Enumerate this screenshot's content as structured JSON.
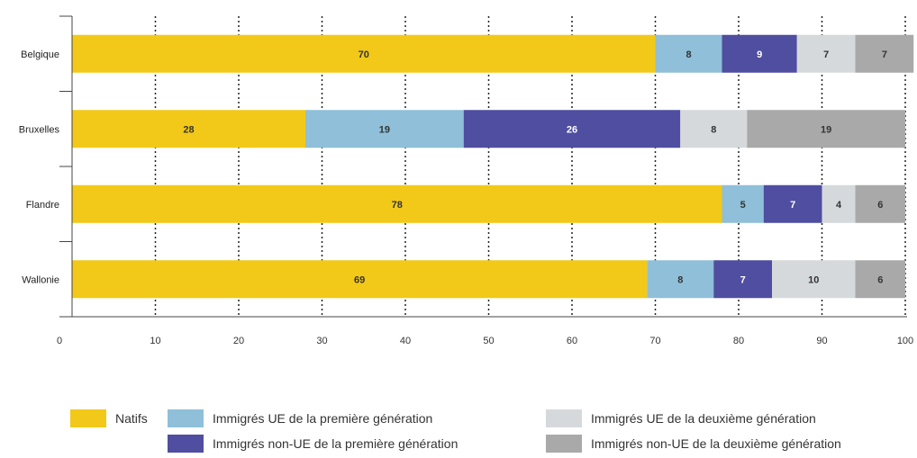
{
  "chart_data": {
    "type": "bar",
    "orientation": "horizontal",
    "stacked": true,
    "categories": [
      "Belgique",
      "Bruxelles",
      "Flandre",
      "Wallonie"
    ],
    "series": [
      {
        "name": "Natifs",
        "values": [
          70,
          28,
          78,
          69
        ],
        "color": "#f2c918",
        "label_color": "#333333"
      },
      {
        "name": "Immigrés UE de la première génération",
        "values": [
          8,
          19,
          5,
          8
        ],
        "color": "#8fbfd9",
        "label_color": "#333333"
      },
      {
        "name": "Immigrés non-UE de la première génération",
        "values": [
          9,
          26,
          7,
          7
        ],
        "color": "#4f4ea0",
        "label_color": "#ffffff"
      },
      {
        "name": "Immigrés UE de la deuxième génération",
        "values": [
          7,
          8,
          4,
          10
        ],
        "color": "#d5d9dc",
        "label_color": "#333333"
      },
      {
        "name": "Immigrés non-UE de la deuxième génération",
        "values": [
          7,
          19,
          6,
          6
        ],
        "color": "#a9a9a9",
        "label_color": "#333333"
      }
    ],
    "xlim": [
      0,
      100
    ],
    "xticks": [
      0,
      10,
      20,
      30,
      40,
      50,
      60,
      70,
      80,
      90,
      100
    ],
    "grid": "vertical dotted",
    "legend_position": "bottom",
    "title": "",
    "xlabel": "",
    "ylabel": ""
  }
}
